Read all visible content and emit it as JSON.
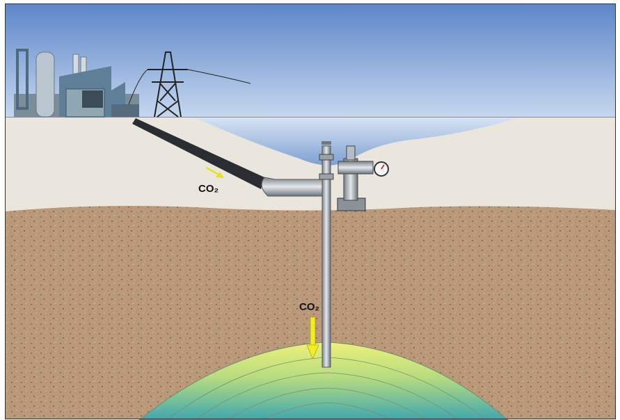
{
  "labels": {
    "pipeline_gas": "CO₂",
    "injection_gas": "CO₂"
  }
}
